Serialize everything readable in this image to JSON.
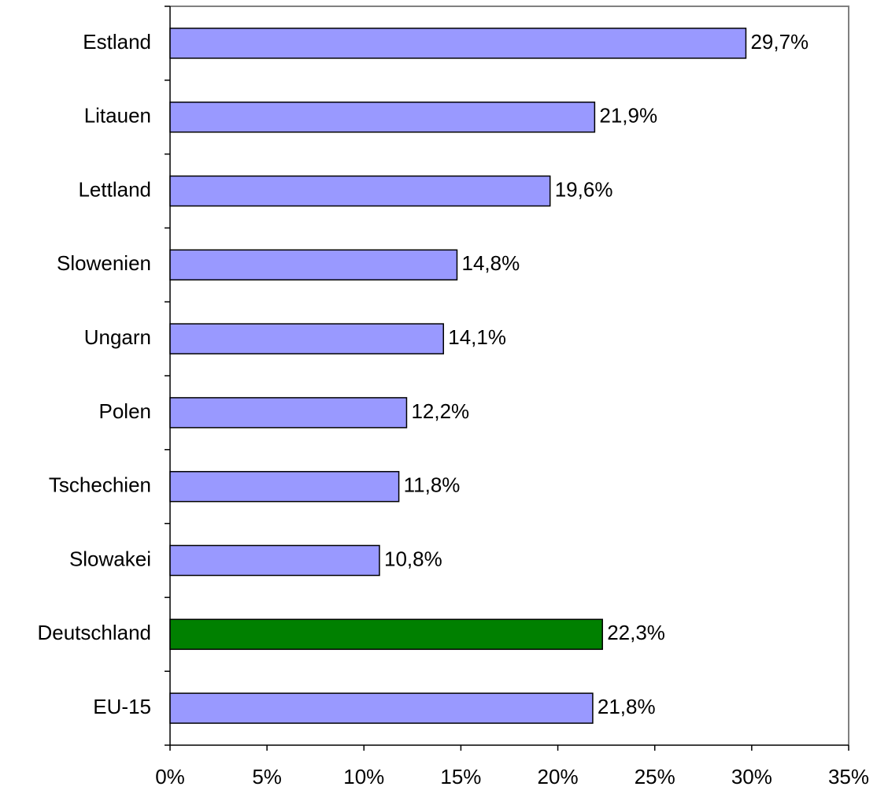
{
  "chart_data": {
    "type": "hbar",
    "categories": [
      "Estland",
      "Litauen",
      "Lettland",
      "Slowenien",
      "Ungarn",
      "Polen",
      "Tschechien",
      "Slowakei",
      "Deutschland",
      "EU-15"
    ],
    "values": [
      29.7,
      21.9,
      19.6,
      14.8,
      14.1,
      12.2,
      11.8,
      10.8,
      22.3,
      21.8
    ],
    "value_labels": [
      "29,7%",
      "21,9%",
      "19,6%",
      "14,8%",
      "14,1%",
      "12,2%",
      "11,8%",
      "10,8%",
      "22,3%",
      "21,8%"
    ],
    "colors": [
      "#9999ff",
      "#9999ff",
      "#9999ff",
      "#9999ff",
      "#9999ff",
      "#9999ff",
      "#9999ff",
      "#9999ff",
      "#008000",
      "#9999ff"
    ],
    "xlim": [
      0,
      35
    ],
    "xticks": [
      {
        "value": 0,
        "label": "0%"
      },
      {
        "value": 5,
        "label": "5%"
      },
      {
        "value": 10,
        "label": "10%"
      },
      {
        "value": 15,
        "label": "15%"
      },
      {
        "value": 20,
        "label": "20%"
      },
      {
        "value": 25,
        "label": "25%"
      },
      {
        "value": 30,
        "label": "30%"
      },
      {
        "value": 35,
        "label": "35%"
      }
    ]
  }
}
